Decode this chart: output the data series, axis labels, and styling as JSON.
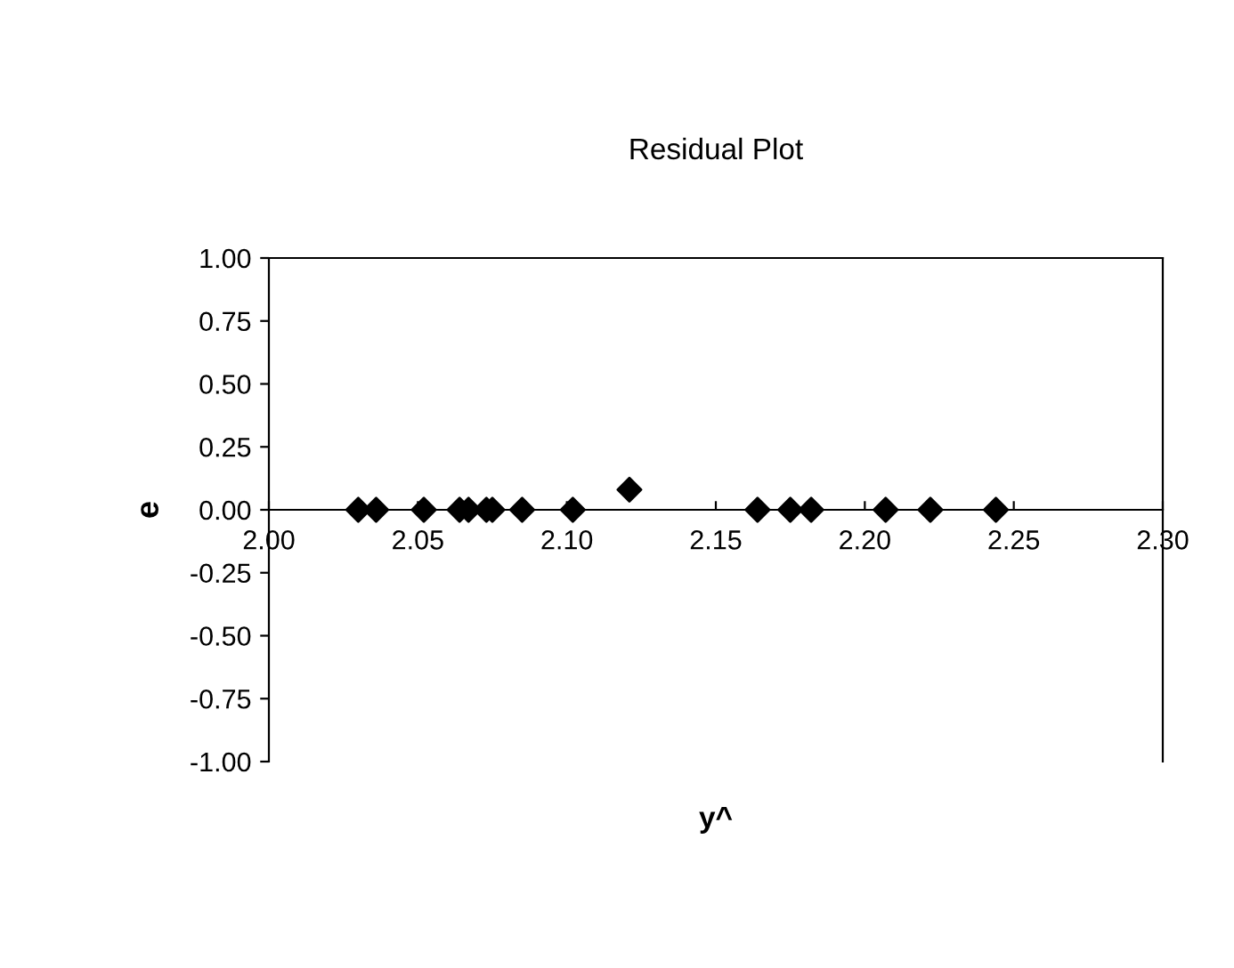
{
  "chart_data": {
    "type": "scatter",
    "title": "Residual Plot",
    "xlabel": "y^",
    "ylabel": "e",
    "x": [
      2.03,
      2.036,
      2.052,
      2.064,
      2.067,
      2.073,
      2.075,
      2.085,
      2.102,
      2.121,
      2.164,
      2.175,
      2.182,
      2.207,
      2.222,
      2.244
    ],
    "values": [
      0,
      0,
      0,
      0,
      0,
      0,
      0,
      0,
      0,
      0.08,
      0,
      0,
      0,
      0,
      0,
      0
    ],
    "color": "#000000",
    "marker": "diamond",
    "grid": false,
    "legend": false,
    "xlim": [
      2.0,
      2.3
    ],
    "xticks": [
      {
        "value": 2.0,
        "label": "2.00"
      },
      {
        "value": 2.05,
        "label": "2.05"
      },
      {
        "value": 2.1,
        "label": "2.10"
      },
      {
        "value": 2.15,
        "label": "2.15"
      },
      {
        "value": 2.2,
        "label": "2.20"
      },
      {
        "value": 2.25,
        "label": "2.25"
      },
      {
        "value": 2.3,
        "label": "2.30"
      }
    ],
    "ylim": [
      -1.0,
      1.0
    ],
    "yticks": [
      {
        "value": 1.0,
        "label": "1.00"
      },
      {
        "value": 0.75,
        "label": "0.75"
      },
      {
        "value": 0.5,
        "label": "0.50"
      },
      {
        "value": 0.25,
        "label": "0.25"
      },
      {
        "value": 0.0,
        "label": "0.00"
      },
      {
        "value": -0.25,
        "label": "-0.25"
      },
      {
        "value": -0.5,
        "label": "-0.50"
      },
      {
        "value": -0.75,
        "label": "-0.75"
      },
      {
        "value": -1.0,
        "label": "-1.00"
      }
    ]
  }
}
